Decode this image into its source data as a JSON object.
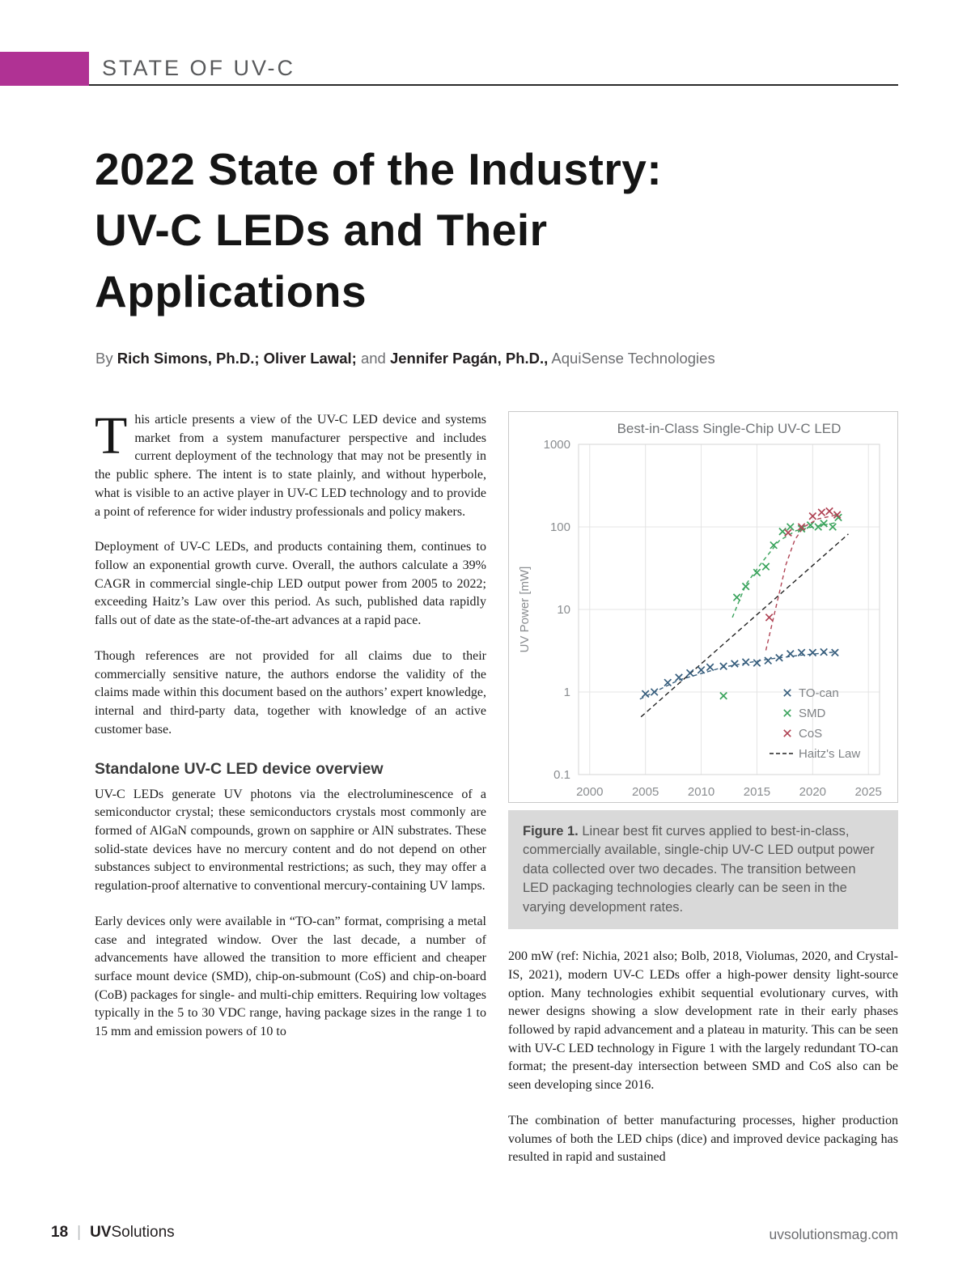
{
  "page": {
    "kicker": "STATE OF UV-C",
    "title_lines": [
      "2022 State of the Industry:",
      "UV-C LEDs and Their",
      "Applications"
    ],
    "byline": {
      "prefix": "By ",
      "authors_bold_1": "Rich Simons, Ph.D.; Oliver Lawal;",
      "connector": " and ",
      "authors_bold_2": "Jennifer Pagán, Ph.D.,",
      "affiliation": " AquiSense Technologies"
    }
  },
  "colors": {
    "accent_magenta": "#b03294",
    "caption_background": "#d9d9d9",
    "header_rule": "#2b2b2b"
  },
  "article": {
    "dropcap": "T",
    "p1": "his article presents a view of the UV-C LED device and systems market from a system manufacturer perspective and includes current deployment of the technology that may not be presently in the public sphere. The intent is to state plainly, and without hyperbole, what is visible to an active player in UV-C LED technology and to provide a point of reference for wider industry professionals and policy makers.",
    "p2": "Deployment of UV-C LEDs, and products containing them, continues to follow an exponential growth curve. Overall, the authors calculate a 39% CAGR in commercial single-chip LED output power from 2005 to 2022; exceeding Haitz’s Law over this period. As such, published data rapidly falls out of date as the state-of-the-art advances at a rapid pace.",
    "p3": "Though references are not provided for all claims due to their commercially sensitive nature, the authors endorse the validity of the claims made within this document based on the authors’ expert knowledge, internal and third-party data, together with knowledge of an active customer base.",
    "subheading": "Standalone UV-C LED device overview",
    "p4": "UV-C LEDs generate UV photons via the electroluminescence of a semiconductor crystal; these semiconductors crystals most commonly are formed of AlGaN compounds, grown on sapphire or AlN substrates. These solid-state devices have no mercury content and do not depend on other substances subject to environmental restrictions; as such, they may offer a regulation-proof alternative to conventional mercury-containing UV lamps.",
    "p5": "Early devices only were available in “TO-can” format, comprising a metal case and integrated window. Over the last decade, a number of advancements have allowed the transition to more efficient and cheaper surface mount device (SMD), chip-on-submount (CoS) and chip-on-board (CoB) packages for single- and multi-chip emitters. Requiring low voltages typically in the 5 to 30 VDC range, having package sizes in the range 1 to 15 mm and emission powers of 10 to",
    "p6": "200 mW (ref: Nichia, 2021 also; Bolb, 2018, Violumas, 2020, and Crystal-IS, 2021), modern UV-C LEDs offer a high-power density light-source option. Many technologies exhibit sequential evolutionary curves, with newer designs showing a slow development rate in their early phases followed by rapid advancement and a plateau in maturity. This can be seen with UV-C LED technology in Figure 1 with the largely redundant TO-can format; the present-day intersection between SMD and CoS also can be seen developing since 2016.",
    "p7": "The combination of better manufacturing processes, higher production volumes of both the LED chips (dice) and improved device packaging has resulted in rapid and sustained"
  },
  "figure": {
    "caption_label": "Figure 1.",
    "caption_text": " Linear best fit curves applied to best-in-class, commercially available, single-chip UV-C LED output power data collected over two decades. The transition between LED packaging technologies clearly can be seen in the varying development rates."
  },
  "chart_data": {
    "type": "scatter",
    "title": "Best-in-Class Single-Chip UV-C LED",
    "xlabel": "",
    "ylabel": "UV Power [mW]",
    "y_scale": "log",
    "xlim": [
      1999,
      2026
    ],
    "ylim": [
      0.1,
      1000
    ],
    "xticks": [
      2000,
      2005,
      2010,
      2015,
      2020,
      2025
    ],
    "yticks": [
      0.1,
      1,
      10,
      100,
      1000
    ],
    "grid": true,
    "legend_position": "lower right",
    "series": [
      {
        "name": "TO-can",
        "marker": "x",
        "color": "#375e7d",
        "points": [
          [
            2005,
            0.95
          ],
          [
            2005.8,
            1.0
          ],
          [
            2007,
            1.3
          ],
          [
            2008,
            1.5
          ],
          [
            2009,
            1.7
          ],
          [
            2010,
            1.85
          ],
          [
            2010.8,
            2.0
          ],
          [
            2012,
            2.05
          ],
          [
            2013,
            2.2
          ],
          [
            2014,
            2.3
          ],
          [
            2015,
            2.25
          ],
          [
            2016,
            2.4
          ],
          [
            2017,
            2.6
          ],
          [
            2018,
            2.9
          ],
          [
            2019,
            3.0
          ],
          [
            2020,
            3.0
          ],
          [
            2021,
            3.05
          ],
          [
            2022,
            3.0
          ]
        ],
        "fit": [
          [
            2004.5,
            0.82
          ],
          [
            2008,
            1.4
          ],
          [
            2012,
            2.0
          ],
          [
            2016,
            2.5
          ],
          [
            2019,
            2.8
          ],
          [
            2022,
            3.05
          ]
        ]
      },
      {
        "name": "SMD",
        "marker": "x",
        "color": "#3aa35c",
        "points": [
          [
            2012,
            0.9
          ],
          [
            2013.2,
            14
          ],
          [
            2014,
            19
          ],
          [
            2015,
            28
          ],
          [
            2015.8,
            33
          ],
          [
            2016.5,
            60
          ],
          [
            2017.3,
            88
          ],
          [
            2018,
            100
          ],
          [
            2019,
            95
          ],
          [
            2019.8,
            105
          ],
          [
            2020.5,
            100
          ],
          [
            2021,
            110
          ],
          [
            2021.8,
            100
          ],
          [
            2022.3,
            130
          ]
        ],
        "fit": [
          [
            2012.8,
            8
          ],
          [
            2014,
            20
          ],
          [
            2015.5,
            38
          ],
          [
            2017,
            68
          ],
          [
            2018.5,
            90
          ],
          [
            2020,
            100
          ],
          [
            2022,
            112
          ]
        ]
      },
      {
        "name": "CoS",
        "marker": "x",
        "color": "#b04455",
        "points": [
          [
            2016.1,
            8
          ],
          [
            2017.8,
            85
          ],
          [
            2019,
            100
          ],
          [
            2020,
            135
          ],
          [
            2020.8,
            150
          ],
          [
            2021.5,
            155
          ],
          [
            2022.2,
            140
          ]
        ],
        "fit": [
          [
            2015.8,
            3.2
          ],
          [
            2016.8,
            12
          ],
          [
            2017.6,
            35
          ],
          [
            2018.4,
            70
          ],
          [
            2019.2,
            100
          ],
          [
            2020.5,
            125
          ],
          [
            2022,
            138
          ]
        ]
      }
    ],
    "haitz_law": {
      "name": "Haitz's Law",
      "style": "dashed",
      "color": "#222222",
      "from": [
        2004.6,
        0.5
      ],
      "to": [
        2023.2,
        82
      ]
    }
  },
  "footer": {
    "page": "18",
    "divider": "|",
    "brand_bold": "UV",
    "brand_regular": "Solutions",
    "website": "uvsolutionsmag.com"
  }
}
